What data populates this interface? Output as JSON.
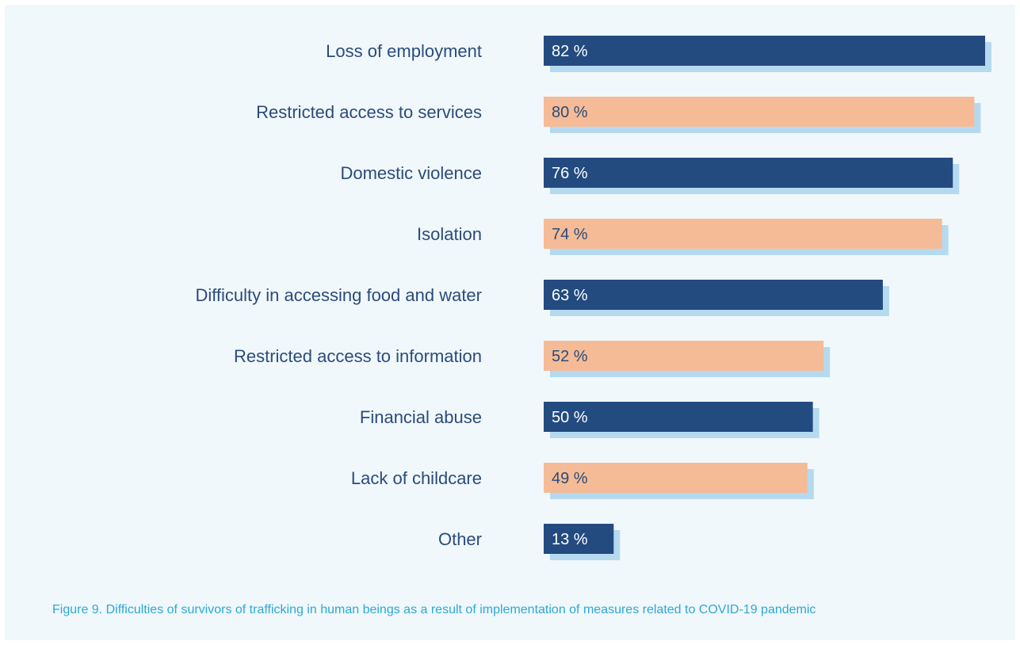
{
  "chart_data": {
    "type": "bar",
    "orientation": "horizontal",
    "categories": [
      "Loss of employment",
      "Restricted access to services",
      "Domestic violence",
      "Isolation",
      "Difficulty in accessing food and water",
      "Restricted access to information",
      "Financial abuse",
      "Lack of childcare",
      "Other"
    ],
    "values": [
      82,
      80,
      76,
      74,
      63,
      52,
      50,
      49,
      13
    ],
    "value_labels": [
      "82 %",
      "80 %",
      "76 %",
      "74 %",
      "63 %",
      "52 %",
      "50 %",
      "49 %",
      "13 %"
    ],
    "xlim": [
      0,
      82
    ],
    "unit": "%",
    "grid": false,
    "colors": {
      "primary_bar": "#234b7f",
      "secondary_bar": "#f5bb96",
      "shadow": "#b5daf0",
      "category_text": "#2a4b7c",
      "caption_text": "#2aa9d6",
      "background": "#f1f8fb"
    }
  },
  "caption": "Figure 9. Difficulties of survivors of trafficking in human beings as a result of implementation of measures related to COVID-19 pandemic"
}
